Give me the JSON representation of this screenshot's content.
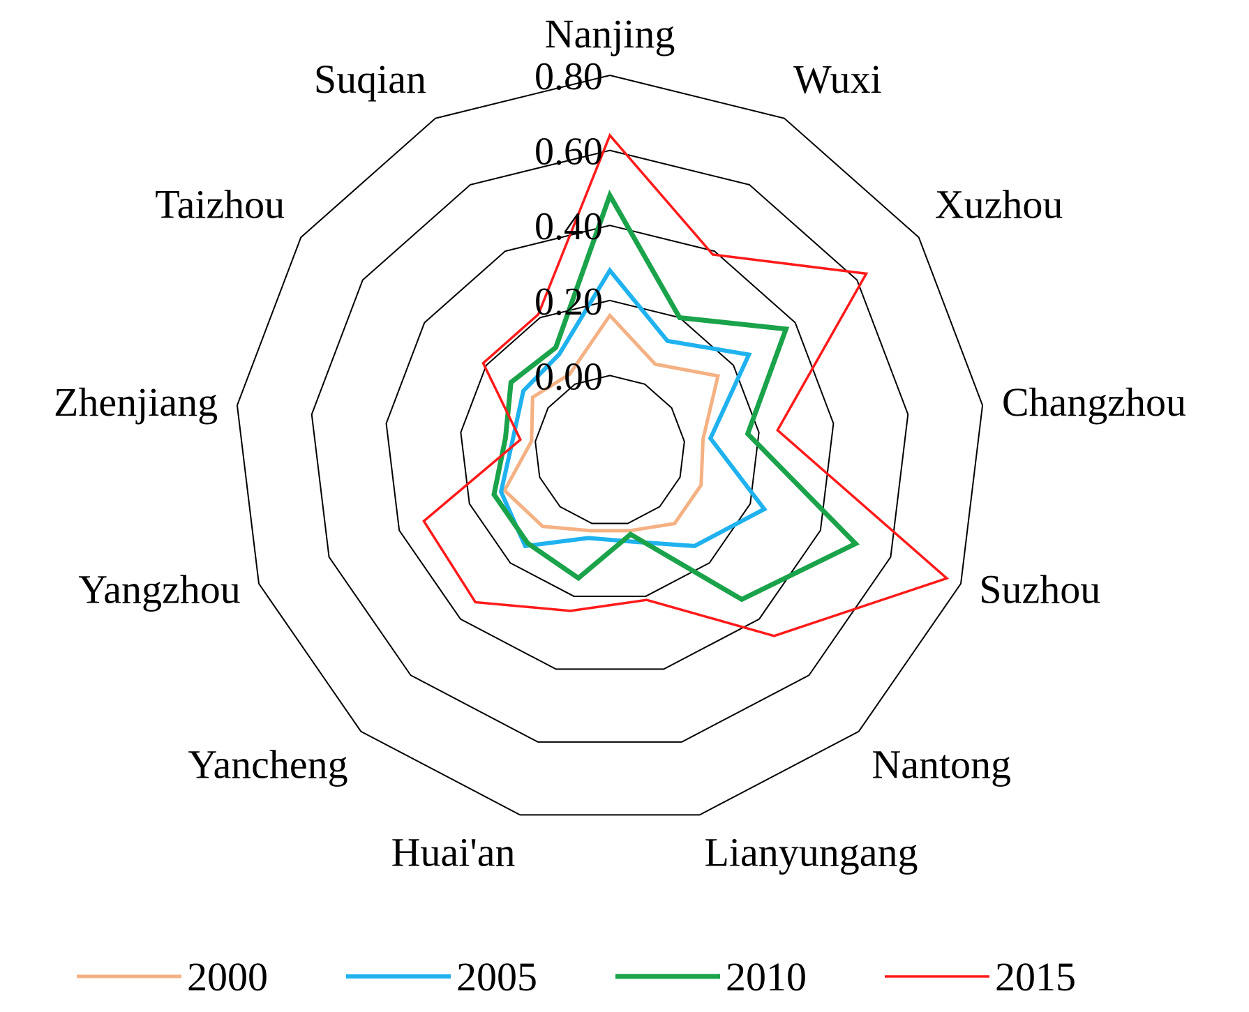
{
  "chart_data": {
    "type": "radar",
    "categories": [
      "Nanjing",
      "Wuxi",
      "Xuzhou",
      "Changzhou",
      "Suzhou",
      "Nantong",
      "Lianyungang",
      "Huai'an",
      "Yancheng",
      "Yangzhou",
      "Zhenjiang",
      "Taizhou",
      "Suqian"
    ],
    "rlim": [
      -0.2,
      0.8
    ],
    "ticks": [
      0.0,
      0.2,
      0.4,
      0.6,
      0.8
    ],
    "tick_labels": [
      "0.00",
      "0.20",
      "0.40",
      "0.60",
      "0.80"
    ],
    "grid": true,
    "legend_position": "bottom",
    "series": [
      {
        "name": "2000",
        "color": "#f4b183",
        "values": [
          0.16,
          0.06,
          0.15,
          0.05,
          0.06,
          0.06,
          0.02,
          0.02,
          0.07,
          0.1,
          0.01,
          0.05,
          0.03
        ]
      },
      {
        "name": "2005",
        "color": "#1fb2ee",
        "values": [
          0.28,
          0.13,
          0.25,
          0.07,
          0.24,
          0.14,
          0.05,
          0.04,
          0.14,
          0.11,
          0.06,
          0.08,
          0.09
        ]
      },
      {
        "name": "2010",
        "color": "#1aa34a",
        "values": [
          0.48,
          0.2,
          0.37,
          0.17,
          0.5,
          0.33,
          0.03,
          0.15,
          0.13,
          0.13,
          0.08,
          0.12,
          0.11
        ]
      },
      {
        "name": "2015",
        "color": "#ff1a1a",
        "values": [
          0.64,
          0.39,
          0.63,
          0.25,
          0.76,
          0.46,
          0.21,
          0.24,
          0.34,
          0.33,
          0.04,
          0.21,
          0.21
        ]
      }
    ]
  }
}
